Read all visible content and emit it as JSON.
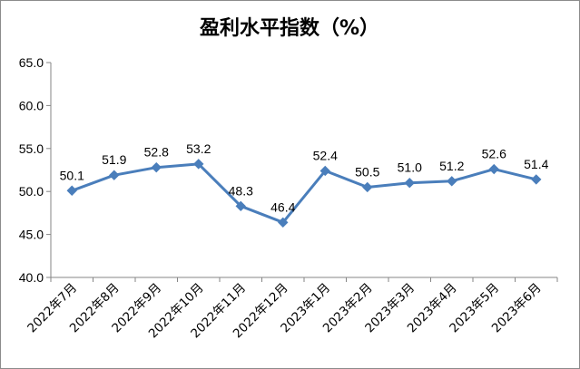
{
  "chart_data": {
    "type": "line",
    "title": "盈利水平指数（%）",
    "categories": [
      "2022年7月",
      "2022年8月",
      "2022年9月",
      "2022年10月",
      "2022年11月",
      "2022年12月",
      "2023年1月",
      "2023年2月",
      "2023年3月",
      "2023年4月",
      "2023年5月",
      "2023年6月"
    ],
    "series": [
      {
        "values": [
          50.1,
          51.9,
          52.8,
          53.2,
          48.3,
          46.4,
          52.4,
          50.5,
          51.0,
          51.2,
          52.6,
          51.4
        ]
      }
    ],
    "data_labels": [
      "50.1",
      "51.9",
      "52.8",
      "53.2",
      "48.3",
      "46.4",
      "52.4",
      "50.5",
      "51.0",
      "51.2",
      "52.6",
      "51.4"
    ],
    "ylim": [
      40.0,
      65.0
    ],
    "y_ticks": [
      "40.0",
      "45.0",
      "50.0",
      "55.0",
      "60.0",
      "65.0"
    ],
    "grid": false,
    "legend": "none",
    "colors": {
      "line": "#4a7ebb",
      "axis": "#868686",
      "border": "#8c8c8c"
    }
  }
}
